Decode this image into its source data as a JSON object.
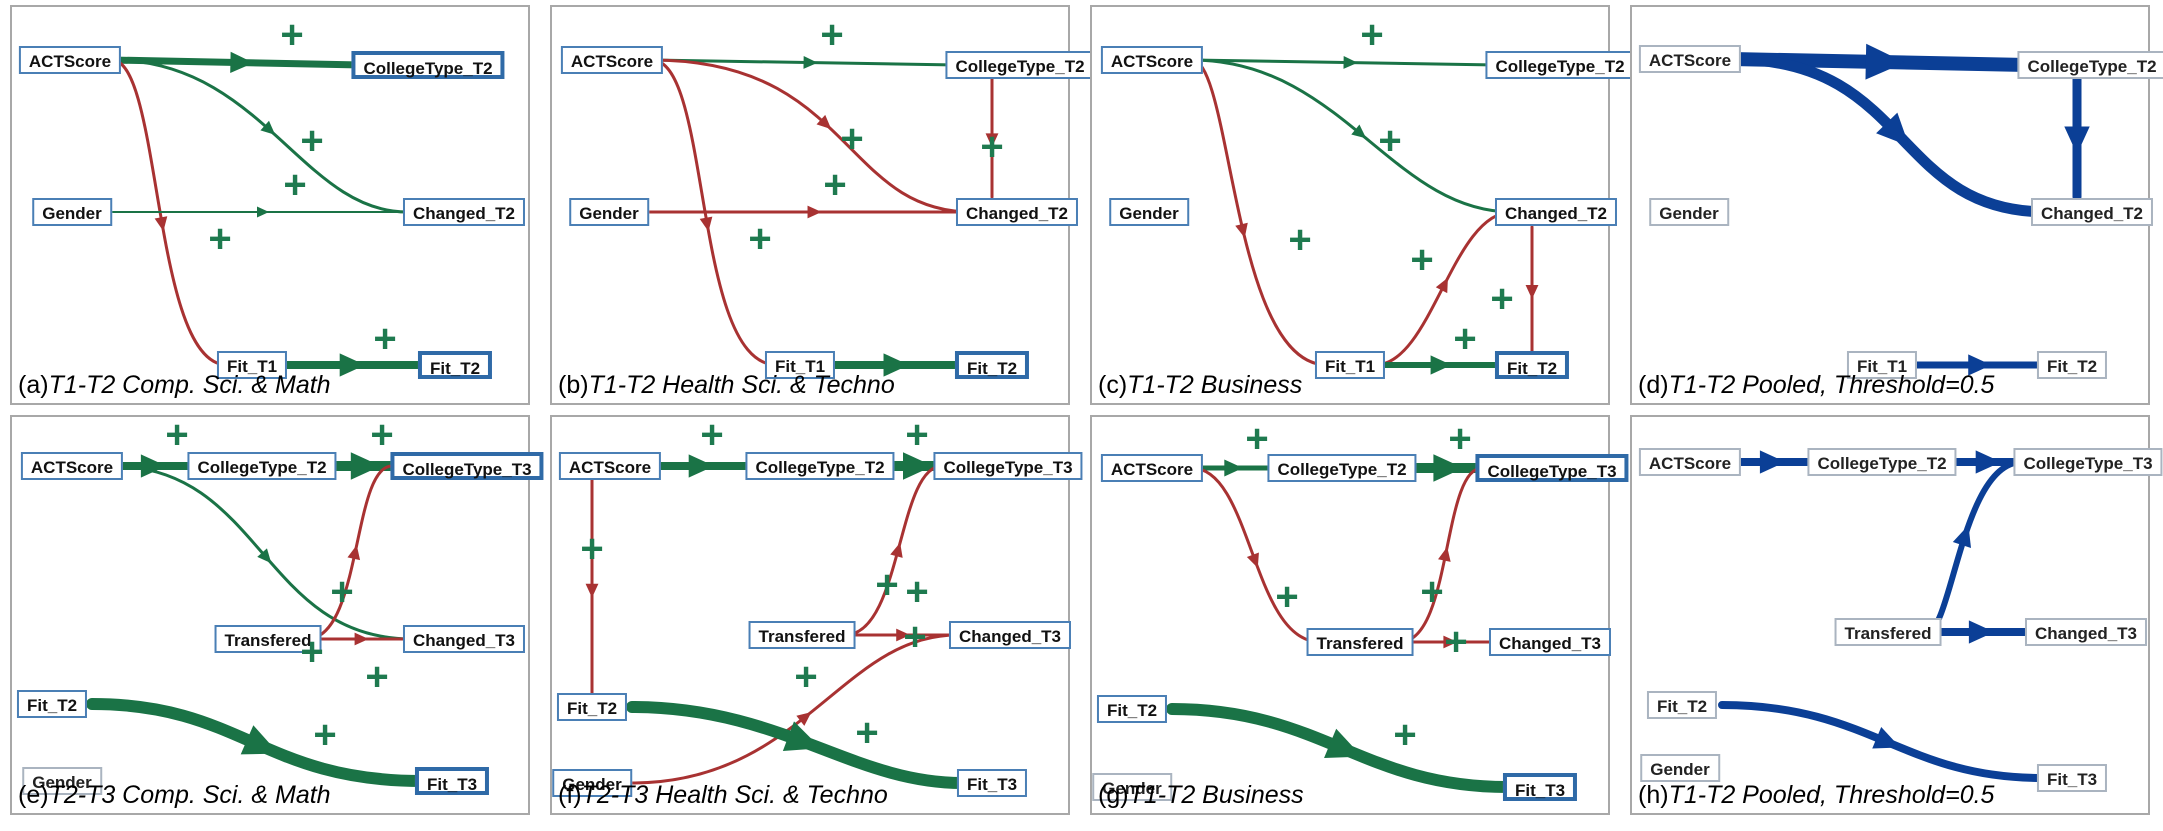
{
  "colors": {
    "positive": "#1a7346",
    "negative": "#a83232",
    "pooled": "#0b3f96",
    "plus": "#1e7a4f"
  },
  "panels": [
    {
      "caption_letter": "(a)",
      "caption_text": "T1-T2 Comp. Sci. & Math",
      "nodes": [
        {
          "id": "ACTScore",
          "label": "ACTScore"
        },
        {
          "id": "CollegeType_T2",
          "label": "CollegeType_T2",
          "thick": true
        },
        {
          "id": "Gender",
          "label": "Gender"
        },
        {
          "id": "Changed_T2",
          "label": "Changed_T2"
        },
        {
          "id": "Fit_T1",
          "label": "Fit_T1"
        },
        {
          "id": "Fit_T2",
          "label": "Fit_T2",
          "thick": true
        }
      ],
      "edges": [
        {
          "from": "ACTScore",
          "to": "CollegeType_T2",
          "sign": "pos",
          "w": 7
        },
        {
          "from": "ACTScore",
          "to": "Changed_T2",
          "sign": "pos",
          "w": 3
        },
        {
          "from": "ACTScore",
          "to": "Fit_T1",
          "sign": "neg",
          "w": 3
        },
        {
          "from": "Gender",
          "to": "Changed_T2",
          "sign": "pos",
          "w": 2
        },
        {
          "from": "Fit_T1",
          "to": "Fit_T2",
          "sign": "pos",
          "w": 8
        }
      ],
      "plus_count": 5
    },
    {
      "caption_letter": "(b)",
      "caption_text": "T1-T2 Health Sci. & Techno",
      "nodes": [
        {
          "id": "ACTScore",
          "label": "ACTScore"
        },
        {
          "id": "CollegeType_T2",
          "label": "CollegeType_T2"
        },
        {
          "id": "Gender",
          "label": "Gender"
        },
        {
          "id": "Changed_T2",
          "label": "Changed_T2"
        },
        {
          "id": "Fit_T1",
          "label": "Fit_T1"
        },
        {
          "id": "Fit_T2",
          "label": "Fit_T2",
          "thick": true
        }
      ],
      "edges": [
        {
          "from": "ACTScore",
          "to": "CollegeType_T2",
          "sign": "pos",
          "w": 3
        },
        {
          "from": "ACTScore",
          "to": "Changed_T2",
          "sign": "neg",
          "w": 3
        },
        {
          "from": "ACTScore",
          "to": "Fit_T1",
          "sign": "neg",
          "w": 3
        },
        {
          "from": "Gender",
          "to": "Changed_T2",
          "sign": "neg",
          "w": 3
        },
        {
          "from": "CollegeType_T2",
          "to": "Changed_T2",
          "sign": "neg",
          "w": 3
        },
        {
          "from": "Fit_T1",
          "to": "Fit_T2",
          "sign": "pos",
          "w": 8
        }
      ],
      "plus_count": 5
    },
    {
      "caption_letter": "(c)",
      "caption_text": "T1-T2 Business",
      "nodes": [
        {
          "id": "ACTScore",
          "label": "ACTScore"
        },
        {
          "id": "CollegeType_T2",
          "label": "CollegeType_T2"
        },
        {
          "id": "Gender",
          "label": "Gender"
        },
        {
          "id": "Changed_T2",
          "label": "Changed_T2"
        },
        {
          "id": "Fit_T1",
          "label": "Fit_T1"
        },
        {
          "id": "Fit_T2",
          "label": "Fit_T2",
          "thick": true
        }
      ],
      "edges": [
        {
          "from": "ACTScore",
          "to": "CollegeType_T2",
          "sign": "pos",
          "w": 3
        },
        {
          "from": "ACTScore",
          "to": "Changed_T2",
          "sign": "pos",
          "w": 3
        },
        {
          "from": "ACTScore",
          "to": "Fit_T1",
          "sign": "neg",
          "w": 3
        },
        {
          "from": "Fit_T1",
          "to": "Changed_T2",
          "sign": "neg",
          "w": 3
        },
        {
          "from": "Changed_T2",
          "to": "Fit_T2",
          "sign": "neg",
          "w": 3
        },
        {
          "from": "Fit_T1",
          "to": "Fit_T2",
          "sign": "pos",
          "w": 6
        }
      ],
      "plus_count": 6
    },
    {
      "caption_letter": "(d)",
      "caption_text": "T1-T2 Pooled, Threshold=0.5",
      "nodes": [
        {
          "id": "ACTScore",
          "label": "ACTScore",
          "gray": true
        },
        {
          "id": "CollegeType_T2",
          "label": "CollegeType_T2",
          "gray": true
        },
        {
          "id": "Gender",
          "label": "Gender",
          "gray": true
        },
        {
          "id": "Changed_T2",
          "label": "Changed_T2",
          "gray": true
        },
        {
          "id": "Fit_T1",
          "label": "Fit_T1",
          "gray": true
        },
        {
          "id": "Fit_T2",
          "label": "Fit_T2",
          "gray": true
        }
      ],
      "edges": [
        {
          "from": "ACTScore",
          "to": "CollegeType_T2",
          "sign": "pooled",
          "w": 14
        },
        {
          "from": "ACTScore",
          "to": "Changed_T2",
          "sign": "pooled",
          "w": 11
        },
        {
          "from": "CollegeType_T2",
          "to": "Changed_T2",
          "sign": "pooled",
          "w": 9
        },
        {
          "from": "Fit_T1",
          "to": "Fit_T2",
          "sign": "pooled",
          "w": 7
        }
      ],
      "plus_count": 0
    },
    {
      "caption_letter": "(e)",
      "caption_text": "T2-T3 Comp. Sci. & Math",
      "nodes": [
        {
          "id": "ACTScore",
          "label": "ACTScore"
        },
        {
          "id": "CollegeType_T2",
          "label": "CollegeType_T2"
        },
        {
          "id": "CollegeType_T3",
          "label": "CollegeType_T3",
          "thick": true
        },
        {
          "id": "Transfered",
          "label": "Transfered"
        },
        {
          "id": "Changed_T3",
          "label": "Changed_T3"
        },
        {
          "id": "Fit_T2",
          "label": "Fit_T2",
          "plain": true
        },
        {
          "id": "Fit_T3",
          "label": "Fit_T3",
          "thick": true
        },
        {
          "id": "Gender",
          "label": "Gender",
          "gray": true
        }
      ],
      "edges": [
        {
          "from": "ACTScore",
          "to": "CollegeType_T2",
          "sign": "pos",
          "w": 8
        },
        {
          "from": "CollegeType_T2",
          "to": "CollegeType_T3",
          "sign": "pos",
          "w": 10
        },
        {
          "from": "ACTScore",
          "to": "Changed_T3",
          "sign": "pos",
          "w": 3
        },
        {
          "from": "Transfered",
          "to": "CollegeType_T3",
          "sign": "neg",
          "w": 3
        },
        {
          "from": "Transfered",
          "to": "Changed_T3",
          "sign": "neg",
          "w": 3
        },
        {
          "from": "Fit_T2",
          "to": "Fit_T3",
          "sign": "pos",
          "w": 12
        }
      ],
      "plus_count": 6
    },
    {
      "caption_letter": "(f)",
      "caption_text": "T2-T3 Health Sci. & Techno",
      "nodes": [
        {
          "id": "ACTScore",
          "label": "ACTScore"
        },
        {
          "id": "CollegeType_T2",
          "label": "CollegeType_T2"
        },
        {
          "id": "CollegeType_T3",
          "label": "CollegeType_T3"
        },
        {
          "id": "Transfered",
          "label": "Transfered"
        },
        {
          "id": "Changed_T3",
          "label": "Changed_T3"
        },
        {
          "id": "Fit_T2",
          "label": "Fit_T2"
        },
        {
          "id": "Fit_T3",
          "label": "Fit_T3"
        },
        {
          "id": "Gender",
          "label": "Gender"
        }
      ],
      "edges": [
        {
          "from": "ACTScore",
          "to": "CollegeType_T2",
          "sign": "pos",
          "w": 8
        },
        {
          "from": "CollegeType_T2",
          "to": "CollegeType_T3",
          "sign": "pos",
          "w": 10
        },
        {
          "from": "ACTScore",
          "to": "Fit_T2",
          "sign": "neg",
          "w": 3
        },
        {
          "from": "Transfered",
          "to": "CollegeType_T3",
          "sign": "neg",
          "w": 3
        },
        {
          "from": "Transfered",
          "to": "Changed_T3",
          "sign": "neg",
          "w": 3
        },
        {
          "from": "Gender",
          "to": "Changed_T3",
          "sign": "neg",
          "w": 3
        },
        {
          "from": "Fit_T2",
          "to": "Fit_T3",
          "sign": "pos",
          "w": 12
        }
      ],
      "plus_count": 8
    },
    {
      "caption_letter": "(g)",
      "caption_text": "T1-T2 Business",
      "nodes": [
        {
          "id": "ACTScore",
          "label": "ACTScore"
        },
        {
          "id": "CollegeType_T2",
          "label": "CollegeType_T2"
        },
        {
          "id": "CollegeType_T3",
          "label": "CollegeType_T3",
          "thick": true
        },
        {
          "id": "Transfered",
          "label": "Transfered"
        },
        {
          "id": "Changed_T3",
          "label": "Changed_T3"
        },
        {
          "id": "Fit_T2",
          "label": "Fit_T2",
          "plain": true
        },
        {
          "id": "Fit_T3",
          "label": "Fit_T3",
          "thick": true
        },
        {
          "id": "Gender",
          "label": "Gender",
          "gray": true
        }
      ],
      "edges": [
        {
          "from": "ACTScore",
          "to": "CollegeType_T2",
          "sign": "pos",
          "w": 5
        },
        {
          "from": "CollegeType_T2",
          "to": "CollegeType_T3",
          "sign": "pos",
          "w": 10
        },
        {
          "from": "ACTScore",
          "to": "Transfered",
          "sign": "neg",
          "w": 3
        },
        {
          "from": "Transfered",
          "to": "CollegeType_T3",
          "sign": "neg",
          "w": 3
        },
        {
          "from": "Transfered",
          "to": "Changed_T3",
          "sign": "neg",
          "w": 3
        },
        {
          "from": "Fit_T2",
          "to": "Fit_T3",
          "sign": "pos",
          "w": 12
        }
      ],
      "plus_count": 6
    },
    {
      "caption_letter": "(h)",
      "caption_text": "T1-T2 Pooled, Threshold=0.5",
      "nodes": [
        {
          "id": "ACTScore",
          "label": "ACTScore",
          "gray": true
        },
        {
          "id": "CollegeType_T2",
          "label": "CollegeType_T2",
          "gray": true
        },
        {
          "id": "CollegeType_T3",
          "label": "CollegeType_T3",
          "gray": true
        },
        {
          "id": "Transfered",
          "label": "Transfered",
          "gray": true
        },
        {
          "id": "Changed_T3",
          "label": "Changed_T3",
          "gray": true
        },
        {
          "id": "Fit_T2",
          "label": "Fit_T2",
          "gray": true
        },
        {
          "id": "Fit_T3",
          "label": "Fit_T3",
          "gray": true
        },
        {
          "id": "Gender",
          "label": "Gender",
          "gray": true
        }
      ],
      "edges": [
        {
          "from": "ACTScore",
          "to": "CollegeType_T2",
          "sign": "pooled",
          "w": 8
        },
        {
          "from": "CollegeType_T2",
          "to": "CollegeType_T3",
          "sign": "pooled",
          "w": 8
        },
        {
          "from": "Transfered",
          "to": "CollegeType_T3",
          "sign": "pooled",
          "w": 6
        },
        {
          "from": "Transfered",
          "to": "Changed_T3",
          "sign": "pooled",
          "w": 8
        },
        {
          "from": "Fit_T2",
          "to": "Fit_T3",
          "sign": "pooled",
          "w": 8
        }
      ],
      "plus_count": 0
    }
  ]
}
